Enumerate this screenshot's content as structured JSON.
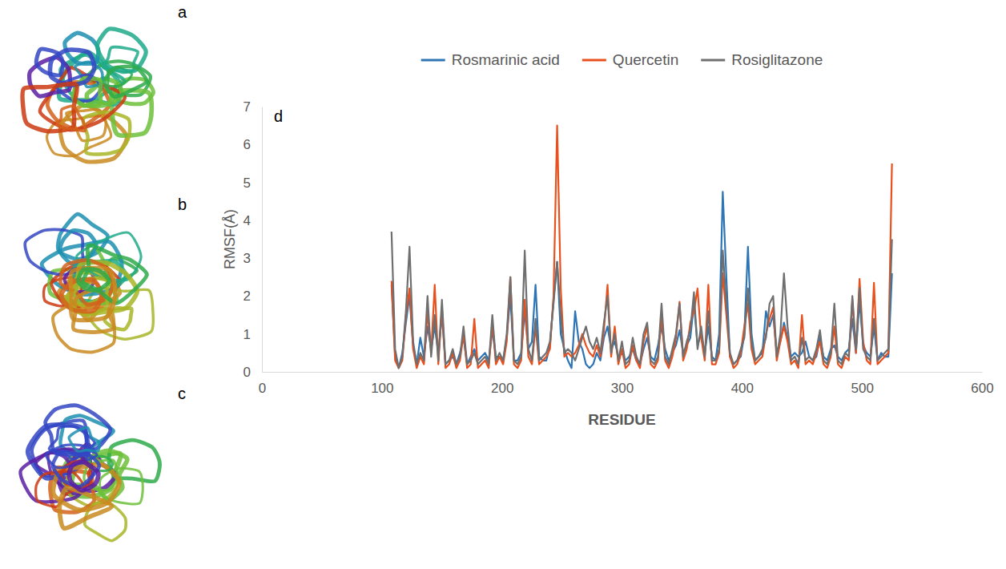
{
  "panels": [
    {
      "label": "a"
    },
    {
      "label": "b"
    },
    {
      "label": "c"
    }
  ],
  "chart_data": {
    "type": "line",
    "panel_label": "d",
    "x_label": "RESIDUE",
    "y_label": "RMSF(Å)",
    "xlim": [
      0,
      600
    ],
    "xticks": [
      0,
      100,
      200,
      300,
      400,
      500,
      600
    ],
    "ylim": [
      0,
      7
    ],
    "yticks": [
      0,
      1,
      2,
      3,
      4,
      5,
      6,
      7
    ],
    "grid": false,
    "legend": "top",
    "x": [
      108,
      111,
      114,
      117,
      120,
      123,
      126,
      129,
      132,
      135,
      138,
      141,
      144,
      147,
      150,
      153,
      156,
      159,
      162,
      165,
      168,
      171,
      174,
      177,
      180,
      183,
      186,
      189,
      192,
      195,
      198,
      201,
      204,
      207,
      210,
      213,
      216,
      219,
      222,
      225,
      228,
      231,
      234,
      237,
      240,
      243,
      246,
      249,
      252,
      255,
      258,
      261,
      264,
      267,
      270,
      273,
      276,
      279,
      282,
      285,
      288,
      291,
      294,
      297,
      300,
      303,
      306,
      309,
      312,
      315,
      318,
      321,
      324,
      327,
      330,
      333,
      336,
      339,
      342,
      345,
      348,
      351,
      354,
      357,
      360,
      363,
      366,
      369,
      372,
      375,
      378,
      381,
      384,
      387,
      390,
      393,
      396,
      399,
      402,
      405,
      408,
      411,
      414,
      417,
      420,
      423,
      426,
      429,
      432,
      435,
      438,
      441,
      444,
      447,
      450,
      453,
      456,
      459,
      462,
      465,
      468,
      471,
      474,
      477,
      480,
      483,
      486,
      489,
      492,
      495,
      498,
      501,
      504,
      507,
      510,
      513,
      516,
      519,
      522,
      525
    ],
    "series": [
      {
        "name": "Rosmarinic acid",
        "color": "#2e75b6",
        "values": [
          2.3,
          0.4,
          0.1,
          0.5,
          1.3,
          2.0,
          0.7,
          0.2,
          0.9,
          0.4,
          1.2,
          0.6,
          1.2,
          0.5,
          1.5,
          0.2,
          0.3,
          0.4,
          0.2,
          0.5,
          0.9,
          0.2,
          0.4,
          0.6,
          0.3,
          0.4,
          0.5,
          0.3,
          1.1,
          0.4,
          0.4,
          0.3,
          0.9,
          2.0,
          0.3,
          0.3,
          0.5,
          1.6,
          0.6,
          0.8,
          2.3,
          0.4,
          0.3,
          0.3,
          0.7,
          1.9,
          2.9,
          1.0,
          0.6,
          0.3,
          0.1,
          1.6,
          0.8,
          0.6,
          0.2,
          0.1,
          0.2,
          0.5,
          0.3,
          0.9,
          1.2,
          0.6,
          0.8,
          0.4,
          0.5,
          0.3,
          0.4,
          0.6,
          0.3,
          0.2,
          0.6,
          0.9,
          0.4,
          0.3,
          0.7,
          1.2,
          0.6,
          0.3,
          0.5,
          0.7,
          1.1,
          0.5,
          0.7,
          0.9,
          1.8,
          0.7,
          1.0,
          0.5,
          1.2,
          0.4,
          0.3,
          1.0,
          4.75,
          2.5,
          0.4,
          0.2,
          0.3,
          0.4,
          1.0,
          3.3,
          1.0,
          0.3,
          0.4,
          0.5,
          1.6,
          1.2,
          1.5,
          0.5,
          0.8,
          1.3,
          0.9,
          0.4,
          0.5,
          0.4,
          0.5,
          0.8,
          0.4,
          0.3,
          0.4,
          0.9,
          0.4,
          0.3,
          0.6,
          0.7,
          0.4,
          0.3,
          0.5,
          0.6,
          1.4,
          0.5,
          1.9,
          0.7,
          0.5,
          0.4,
          1.2,
          0.3,
          0.5,
          0.4,
          0.4,
          2.6
        ]
      },
      {
        "name": "Quercetin",
        "color": "#e8501e",
        "values": [
          2.4,
          0.3,
          0.1,
          0.3,
          1.5,
          2.2,
          0.6,
          0.1,
          0.4,
          0.2,
          1.6,
          0.5,
          2.3,
          0.2,
          1.7,
          0.1,
          0.2,
          0.5,
          0.1,
          0.3,
          1.0,
          0.1,
          0.2,
          1.4,
          0.1,
          0.2,
          0.3,
          0.1,
          1.3,
          0.2,
          0.4,
          0.2,
          0.8,
          2.5,
          0.2,
          0.1,
          0.3,
          1.9,
          0.4,
          0.2,
          1.2,
          0.2,
          0.3,
          0.4,
          0.6,
          2.0,
          6.5,
          2.2,
          0.4,
          0.5,
          0.4,
          0.5,
          0.7,
          1.0,
          0.7,
          0.5,
          0.4,
          0.7,
          0.4,
          1.1,
          2.3,
          0.4,
          1.2,
          0.2,
          0.6,
          0.1,
          0.2,
          0.7,
          0.3,
          0.1,
          0.8,
          1.2,
          0.2,
          0.1,
          0.3,
          1.5,
          0.3,
          0.1,
          0.4,
          0.9,
          1.85,
          0.3,
          0.6,
          1.3,
          1.6,
          2.2,
          0.9,
          0.3,
          2.3,
          0.2,
          0.2,
          0.5,
          2.6,
          1.5,
          0.4,
          0.1,
          0.2,
          0.5,
          1.2,
          1.8,
          0.6,
          0.2,
          0.3,
          0.4,
          1.0,
          1.4,
          1.7,
          0.3,
          0.8,
          1.2,
          0.8,
          0.2,
          0.3,
          0.1,
          1.5,
          0.2,
          0.3,
          0.2,
          0.5,
          0.8,
          0.2,
          0.1,
          0.4,
          1.2,
          0.2,
          0.1,
          0.4,
          0.3,
          1.9,
          0.5,
          2.45,
          0.8,
          0.3,
          0.2,
          2.35,
          0.2,
          0.3,
          0.4,
          0.5,
          5.5
        ]
      },
      {
        "name": "Rosiglitazone",
        "color": "#6f6f6f",
        "values": [
          3.7,
          0.6,
          0.1,
          0.4,
          1.6,
          3.3,
          0.8,
          0.2,
          0.5,
          0.3,
          2.0,
          0.4,
          1.5,
          0.3,
          1.9,
          0.2,
          0.3,
          0.6,
          0.2,
          0.4,
          1.2,
          0.2,
          0.3,
          0.5,
          0.2,
          0.3,
          0.4,
          0.2,
          1.5,
          0.3,
          0.5,
          0.3,
          1.0,
          2.5,
          0.3,
          0.2,
          0.4,
          3.2,
          0.6,
          0.3,
          1.4,
          0.3,
          0.4,
          0.5,
          0.8,
          1.8,
          2.9,
          1.5,
          0.5,
          0.6,
          0.5,
          0.3,
          0.6,
          0.9,
          1.2,
          0.8,
          0.6,
          0.9,
          0.5,
          1.3,
          2.0,
          0.5,
          1.0,
          0.3,
          0.8,
          0.2,
          0.3,
          0.9,
          0.4,
          0.2,
          1.0,
          1.3,
          0.3,
          0.2,
          0.4,
          1.8,
          0.4,
          0.2,
          0.6,
          1.0,
          1.8,
          0.4,
          0.8,
          1.1,
          2.1,
          0.6,
          1.2,
          0.4,
          1.6,
          0.3,
          0.3,
          0.6,
          3.2,
          1.8,
          0.5,
          0.2,
          0.3,
          0.6,
          0.9,
          2.2,
          0.8,
          0.3,
          0.4,
          0.6,
          0.9,
          1.8,
          2.0,
          0.4,
          1.0,
          2.6,
          1.2,
          0.3,
          0.4,
          0.2,
          0.9,
          0.3,
          0.4,
          0.3,
          0.6,
          1.1,
          0.3,
          0.2,
          0.5,
          1.8,
          0.3,
          0.2,
          0.5,
          0.4,
          2.0,
          0.6,
          2.2,
          0.6,
          0.4,
          0.3,
          1.4,
          0.3,
          0.4,
          0.5,
          0.6,
          3.5
        ]
      }
    ]
  }
}
